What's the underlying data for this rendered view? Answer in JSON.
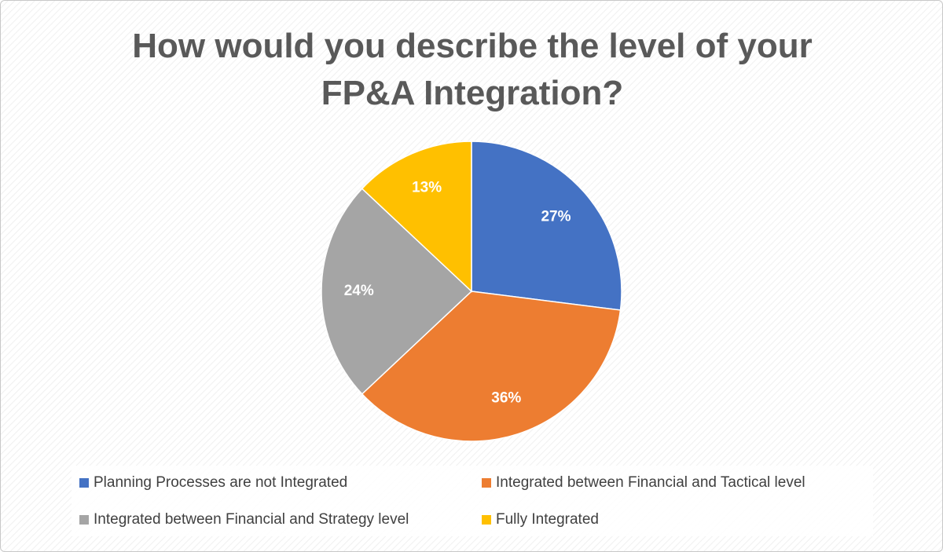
{
  "chart_data": {
    "type": "pie",
    "title": "How would you describe the level of your FP&A Integration?",
    "categories": [
      "Planning Processes are not Integrated",
      "Integrated between Financial and Tactical level",
      "Integrated between Financial and Strategy level",
      "Fully Integrated"
    ],
    "values": [
      27,
      36,
      24,
      13
    ],
    "value_labels": [
      "27%",
      "36%",
      "24%",
      "13%"
    ],
    "colors": [
      "#4472c4",
      "#ed7d31",
      "#a5a5a5",
      "#ffc000"
    ]
  }
}
